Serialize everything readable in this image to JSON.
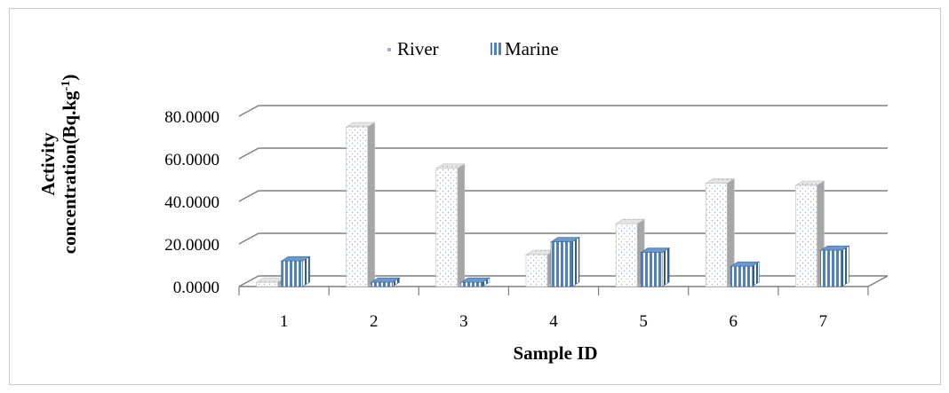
{
  "chart_data": {
    "type": "bar",
    "title": "",
    "xlabel": "Sample ID",
    "ylabel_line1": "Activity",
    "ylabel_line2_base": "concentration(Bq.kg",
    "ylabel_line2_sup": "-1",
    "ylabel_line2_end": ")",
    "categories": [
      "1",
      "2",
      "3",
      "4",
      "5",
      "6",
      "7"
    ],
    "series": [
      {
        "name": "River",
        "values": [
          2.0,
          75.0,
          55.5,
          15.0,
          29.5,
          48.5,
          47.5
        ],
        "color": "#f0f4f8"
      },
      {
        "name": "Marine",
        "values": [
          12.0,
          2.0,
          2.0,
          21.0,
          16.0,
          9.5,
          17.0
        ],
        "color": "#4f81bd"
      }
    ],
    "y_ticks": [
      "0.0000",
      "20.0000",
      "40.0000",
      "60.0000",
      "80.0000"
    ],
    "ylim": [
      0,
      80
    ],
    "grid": true,
    "legend": "top-center",
    "style": "3d-clustered-column"
  }
}
